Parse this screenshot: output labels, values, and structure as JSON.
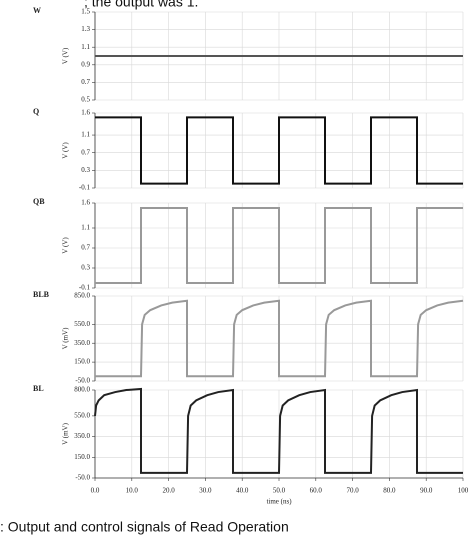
{
  "header": {
    "text": "; the output was 1."
  },
  "caption": {
    "text": ": Output and control signals of Read Operation"
  },
  "chart_data": [
    {
      "type": "line",
      "title": "W",
      "ylabel": "V (V)",
      "xlim": [
        0,
        100
      ],
      "ylim": [
        0.5,
        1.5
      ],
      "yticks": [
        0.5,
        0.7,
        0.9,
        1.1,
        1.3,
        1.5
      ],
      "grid": true,
      "series": [
        {
          "color": "#555555",
          "x": [
            0,
            100
          ],
          "values": [
            1.0,
            1.0
          ]
        }
      ]
    },
    {
      "type": "line",
      "title": "Q",
      "ylabel": "V (V)",
      "xlim": [
        0,
        100
      ],
      "ylim": [
        -0.1,
        1.6
      ],
      "yticks": [
        -0.1,
        0.3,
        0.7,
        1.1,
        1.6
      ],
      "grid": true,
      "series": [
        {
          "color": "#111111",
          "x": [
            0,
            12.5,
            12.5,
            25,
            25,
            37.5,
            37.5,
            50,
            50,
            62.5,
            62.5,
            75,
            75,
            87.5,
            87.5,
            100
          ],
          "values": [
            1.5,
            1.5,
            0,
            0,
            1.5,
            1.5,
            0,
            0,
            1.5,
            1.5,
            0,
            0,
            1.5,
            1.5,
            0,
            0
          ]
        }
      ]
    },
    {
      "type": "line",
      "title": "QB",
      "ylabel": "V (V)",
      "xlim": [
        0,
        100
      ],
      "ylim": [
        -0.1,
        1.6
      ],
      "yticks": [
        -0.1,
        0.3,
        0.7,
        1.1,
        1.6
      ],
      "grid": true,
      "series": [
        {
          "color": "#999999",
          "x": [
            0,
            12.5,
            12.5,
            25,
            25,
            37.5,
            37.5,
            50,
            50,
            62.5,
            62.5,
            75,
            75,
            87.5,
            87.5,
            100
          ],
          "values": [
            0,
            0,
            1.5,
            1.5,
            0,
            0,
            1.5,
            1.5,
            0,
            0,
            1.5,
            1.5,
            0,
            0,
            1.5,
            1.5
          ]
        }
      ]
    },
    {
      "type": "line",
      "title": "BLB",
      "ylabel": "V (mV)",
      "xlim": [
        0,
        100
      ],
      "ylim": [
        -50,
        850
      ],
      "yticks": [
        {
          "value": -50,
          "label": "-50.0"
        },
        {
          "value": 150,
          "label": "150.0"
        },
        {
          "value": 350,
          "label": "350.0"
        },
        {
          "value": 550,
          "label": "550.0"
        },
        {
          "value": 850,
          "label": "850.0"
        }
      ],
      "grid": true,
      "series": [
        {
          "color": "#999999",
          "x": [
            0,
            12.5,
            12.5,
            12.8,
            13.5,
            15,
            18,
            21,
            25,
            25,
            37.5,
            37.5,
            37.8,
            38.5,
            40,
            43,
            46,
            50,
            50,
            62.5,
            62.5,
            62.8,
            63.5,
            65,
            68,
            71,
            75,
            75,
            87.5,
            87.5,
            87.8,
            88.5,
            90,
            93,
            96,
            100
          ],
          "values": [
            0,
            0,
            0,
            550,
            650,
            700,
            750,
            780,
            800,
            0,
            0,
            0,
            550,
            650,
            700,
            750,
            780,
            800,
            0,
            0,
            0,
            550,
            650,
            700,
            750,
            780,
            800,
            0,
            0,
            0,
            550,
            650,
            700,
            750,
            780,
            800
          ]
        }
      ]
    },
    {
      "type": "line",
      "title": "BL",
      "ylabel": "V (mV)",
      "xlabel": "time (ns)",
      "xlim": [
        0,
        100
      ],
      "ylim": [
        -50,
        800
      ],
      "yticks": [
        {
          "value": -50,
          "label": "-50.0"
        },
        {
          "value": 150,
          "label": "150.0"
        },
        {
          "value": 350,
          "label": "350.0"
        },
        {
          "value": 550,
          "label": "550.0"
        },
        {
          "value": 800,
          "label": "800.0"
        }
      ],
      "grid": true,
      "xticks": [
        {
          "value": 0,
          "label": "0.0"
        },
        {
          "value": 10,
          "label": "10.0"
        },
        {
          "value": 20,
          "label": "20.0"
        },
        {
          "value": 30,
          "label": "30.0"
        },
        {
          "value": 40,
          "label": "40.0"
        },
        {
          "value": 50,
          "label": "50.0"
        },
        {
          "value": 60,
          "label": "60.0"
        },
        {
          "value": 70,
          "label": "70.0"
        },
        {
          "value": 80,
          "label": "80.0"
        },
        {
          "value": 90,
          "label": "90.0"
        },
        100
      ],
      "series": [
        {
          "color": "#222222",
          "x": [
            0,
            0.3,
            1,
            2.5,
            5.5,
            8.5,
            12.5,
            12.5,
            25,
            25,
            25.3,
            26,
            27.5,
            30.5,
            33.5,
            37.5,
            37.5,
            50,
            50,
            50.3,
            51,
            52.5,
            55.5,
            58.5,
            62.5,
            62.5,
            75,
            75,
            75.3,
            76,
            77.5,
            80.5,
            83.5,
            87.5,
            87.5,
            100
          ],
          "values": [
            550,
            650,
            700,
            750,
            780,
            800,
            810,
            0,
            0,
            0,
            550,
            650,
            700,
            750,
            780,
            800,
            0,
            0,
            0,
            550,
            650,
            700,
            750,
            780,
            800,
            0,
            0,
            0,
            550,
            650,
            700,
            750,
            780,
            800,
            0,
            0
          ]
        }
      ]
    }
  ]
}
